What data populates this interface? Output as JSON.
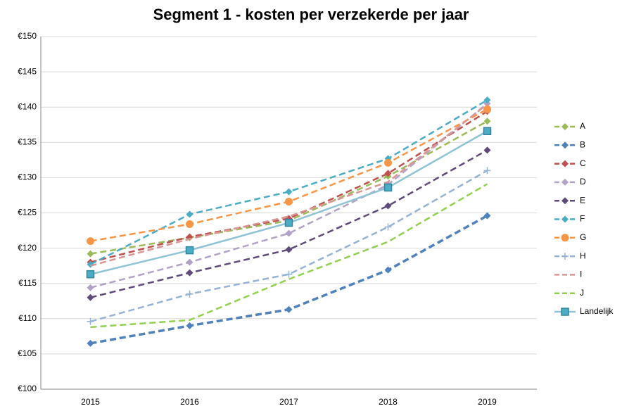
{
  "chart_data": {
    "type": "line",
    "title": "Segment 1 - kosten per verzekerde per jaar",
    "categories": [
      "2015",
      "2016",
      "2017",
      "2018",
      "2019"
    ],
    "ylim": [
      100,
      150
    ],
    "yticks": [
      {
        "value": 100,
        "label": "€100"
      },
      {
        "value": 105,
        "label": "€105"
      },
      {
        "value": 110,
        "label": "€110"
      },
      {
        "value": 115,
        "label": "€115"
      },
      {
        "value": 120,
        "label": "€120"
      },
      {
        "value": 125,
        "label": "€125"
      },
      {
        "value": 130,
        "label": "€130"
      },
      {
        "value": 135,
        "label": "€135"
      },
      {
        "value": 140,
        "label": "€140"
      },
      {
        "value": 145,
        "label": "€145"
      },
      {
        "value": 150,
        "label": "€150"
      }
    ],
    "grid": true,
    "legend": "right",
    "series": [
      {
        "name": "A",
        "color": "#9bbb59",
        "marker": "diamond",
        "dashed": true,
        "values": [
          119.2,
          121.5,
          123.9,
          130.2,
          138.0
        ]
      },
      {
        "name": "B",
        "color": "#4f81bd",
        "marker": "diamond",
        "dashed": true,
        "values": [
          106.5,
          109.0,
          111.3,
          116.9,
          124.6
        ]
      },
      {
        "name": "C",
        "color": "#c0504d",
        "marker": "diamond",
        "dashed": true,
        "values": [
          118.0,
          121.6,
          124.2,
          130.6,
          139.4
        ]
      },
      {
        "name": "D",
        "color": "#b3a2c7",
        "marker": "diamond",
        "dashed": true,
        "values": [
          114.4,
          118.0,
          122.1,
          129.0,
          140.5
        ]
      },
      {
        "name": "E",
        "color": "#604a7b",
        "marker": "diamond",
        "dashed": true,
        "values": [
          113.0,
          116.5,
          119.8,
          126.0,
          133.9
        ]
      },
      {
        "name": "F",
        "color": "#4bacc6",
        "marker": "diamond",
        "dashed": true,
        "values": [
          117.7,
          124.8,
          128.0,
          132.7,
          141.0
        ]
      },
      {
        "name": "G",
        "color": "#f79646",
        "marker": "circle",
        "dashed": true,
        "values": [
          121.0,
          123.4,
          126.6,
          132.1,
          139.7
        ]
      },
      {
        "name": "H",
        "color": "#95b3d7",
        "marker": "plus",
        "dashed": true,
        "values": [
          109.6,
          113.5,
          116.3,
          123.0,
          131.0
        ]
      },
      {
        "name": "I",
        "color": "#d99694",
        "marker": "none",
        "dashed": true,
        "values": [
          117.5,
          121.3,
          124.5,
          129.4,
          140.4
        ]
      },
      {
        "name": "J",
        "color": "#92d050",
        "marker": "none",
        "dashed": true,
        "values": [
          108.8,
          109.8,
          115.6,
          120.9,
          129.1
        ]
      },
      {
        "name": "Landelijk",
        "color": "#8fc3d6",
        "marker": "square",
        "dashed": false,
        "values": [
          116.3,
          119.7,
          123.6,
          128.6,
          136.6
        ]
      }
    ]
  }
}
